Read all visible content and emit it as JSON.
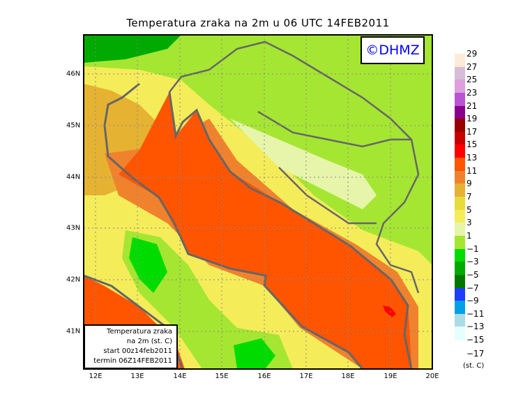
{
  "title": "Temperatura zraka na 2m u 06 UTC 14FEB2011",
  "logo": "©DHMZ",
  "x_ticks": [
    "12E",
    "13E",
    "14E",
    "15E",
    "16E",
    "17E",
    "18E",
    "19E",
    "20E"
  ],
  "y_ticks": [
    "41N",
    "42N",
    "43N",
    "44N",
    "45N",
    "46N"
  ],
  "info_box": [
    "Temperatura zraka",
    "na 2m (st. C)",
    "start 00z14feb2011",
    "termin 06Z14FEB2011"
  ],
  "legend": {
    "labels": [
      "29",
      "27",
      "25",
      "23",
      "21",
      "19",
      "17",
      "15",
      "13",
      "11",
      "9",
      "7",
      "5",
      "3",
      "1",
      "−1",
      "−3",
      "−5",
      "−7",
      "−9",
      "−11",
      "−13",
      "−15",
      "−17"
    ],
    "colors": [
      "#fdebd9",
      "#d7bdd7",
      "#dda0dc",
      "#b955d2",
      "#8b008b",
      "#990000",
      "#c80000",
      "#ff0000",
      "#ff5500",
      "#f0822e",
      "#e6b232",
      "#e6dc3c",
      "#f5ec5a",
      "#e6f5aa",
      "#a5e632",
      "#00dc00",
      "#00aa00",
      "#007800",
      "#1e3cff",
      "#00a0e6",
      "#aadce6",
      "#e6ffff"
    ],
    "unit": "(st. C)"
  }
}
